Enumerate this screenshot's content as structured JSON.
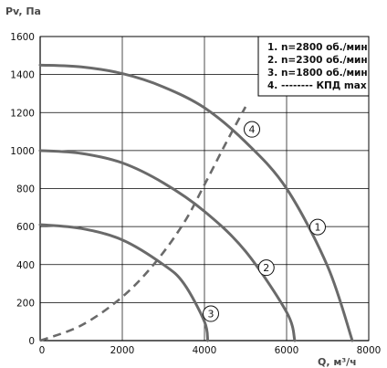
{
  "chart_data": {
    "type": "line",
    "xlabel": "Q, м³/ч",
    "ylabel": "Pv, Па",
    "xlim": [
      0,
      8000
    ],
    "ylim": [
      0,
      1600
    ],
    "x_ticks": [
      "0",
      "2000",
      "4000",
      "6000",
      "8000"
    ],
    "y_ticks": [
      "0",
      "200",
      "400",
      "600",
      "800",
      "1000",
      "1200",
      "1400",
      "1600"
    ],
    "grid": true,
    "legend_position": "top-right",
    "legend": [
      "1. n=2800 об./мин",
      "2. n=2300 об./мин",
      "3. n=1800 об./мин",
      "4. -------- КПД max"
    ],
    "series": [
      {
        "name": "1. n=2800 об./мин",
        "label": "1",
        "style": "solid",
        "x": [
          0,
          1000,
          2000,
          3000,
          4000,
          5000,
          6000,
          7000,
          7600
        ],
        "y": [
          1450,
          1440,
          1405,
          1335,
          1225,
          1045,
          800,
          390,
          0
        ]
      },
      {
        "name": "2. n=2300 об./мин",
        "label": "2",
        "style": "solid",
        "x": [
          0,
          1000,
          2000,
          3000,
          4000,
          5000,
          6000,
          6200
        ],
        "y": [
          1000,
          985,
          935,
          830,
          680,
          470,
          150,
          0
        ]
      },
      {
        "name": "3. n=1800 об./мин",
        "label": "3",
        "style": "solid",
        "x": [
          0,
          1000,
          2000,
          3000,
          3500,
          4000,
          4080
        ],
        "y": [
          610,
          590,
          530,
          400,
          300,
          100,
          0
        ]
      },
      {
        "name": "4. -------- КПД max",
        "label": "4",
        "style": "dashed",
        "x": [
          0,
          1000,
          2000,
          2800,
          3500,
          4000,
          4500,
          5000
        ],
        "y": [
          0,
          80,
          230,
          410,
          620,
          820,
          1030,
          1230
        ]
      }
    ]
  },
  "colors": {
    "curve": "#6a6a6a",
    "grid": "#000000",
    "axis_title": "#4a4a4a"
  }
}
